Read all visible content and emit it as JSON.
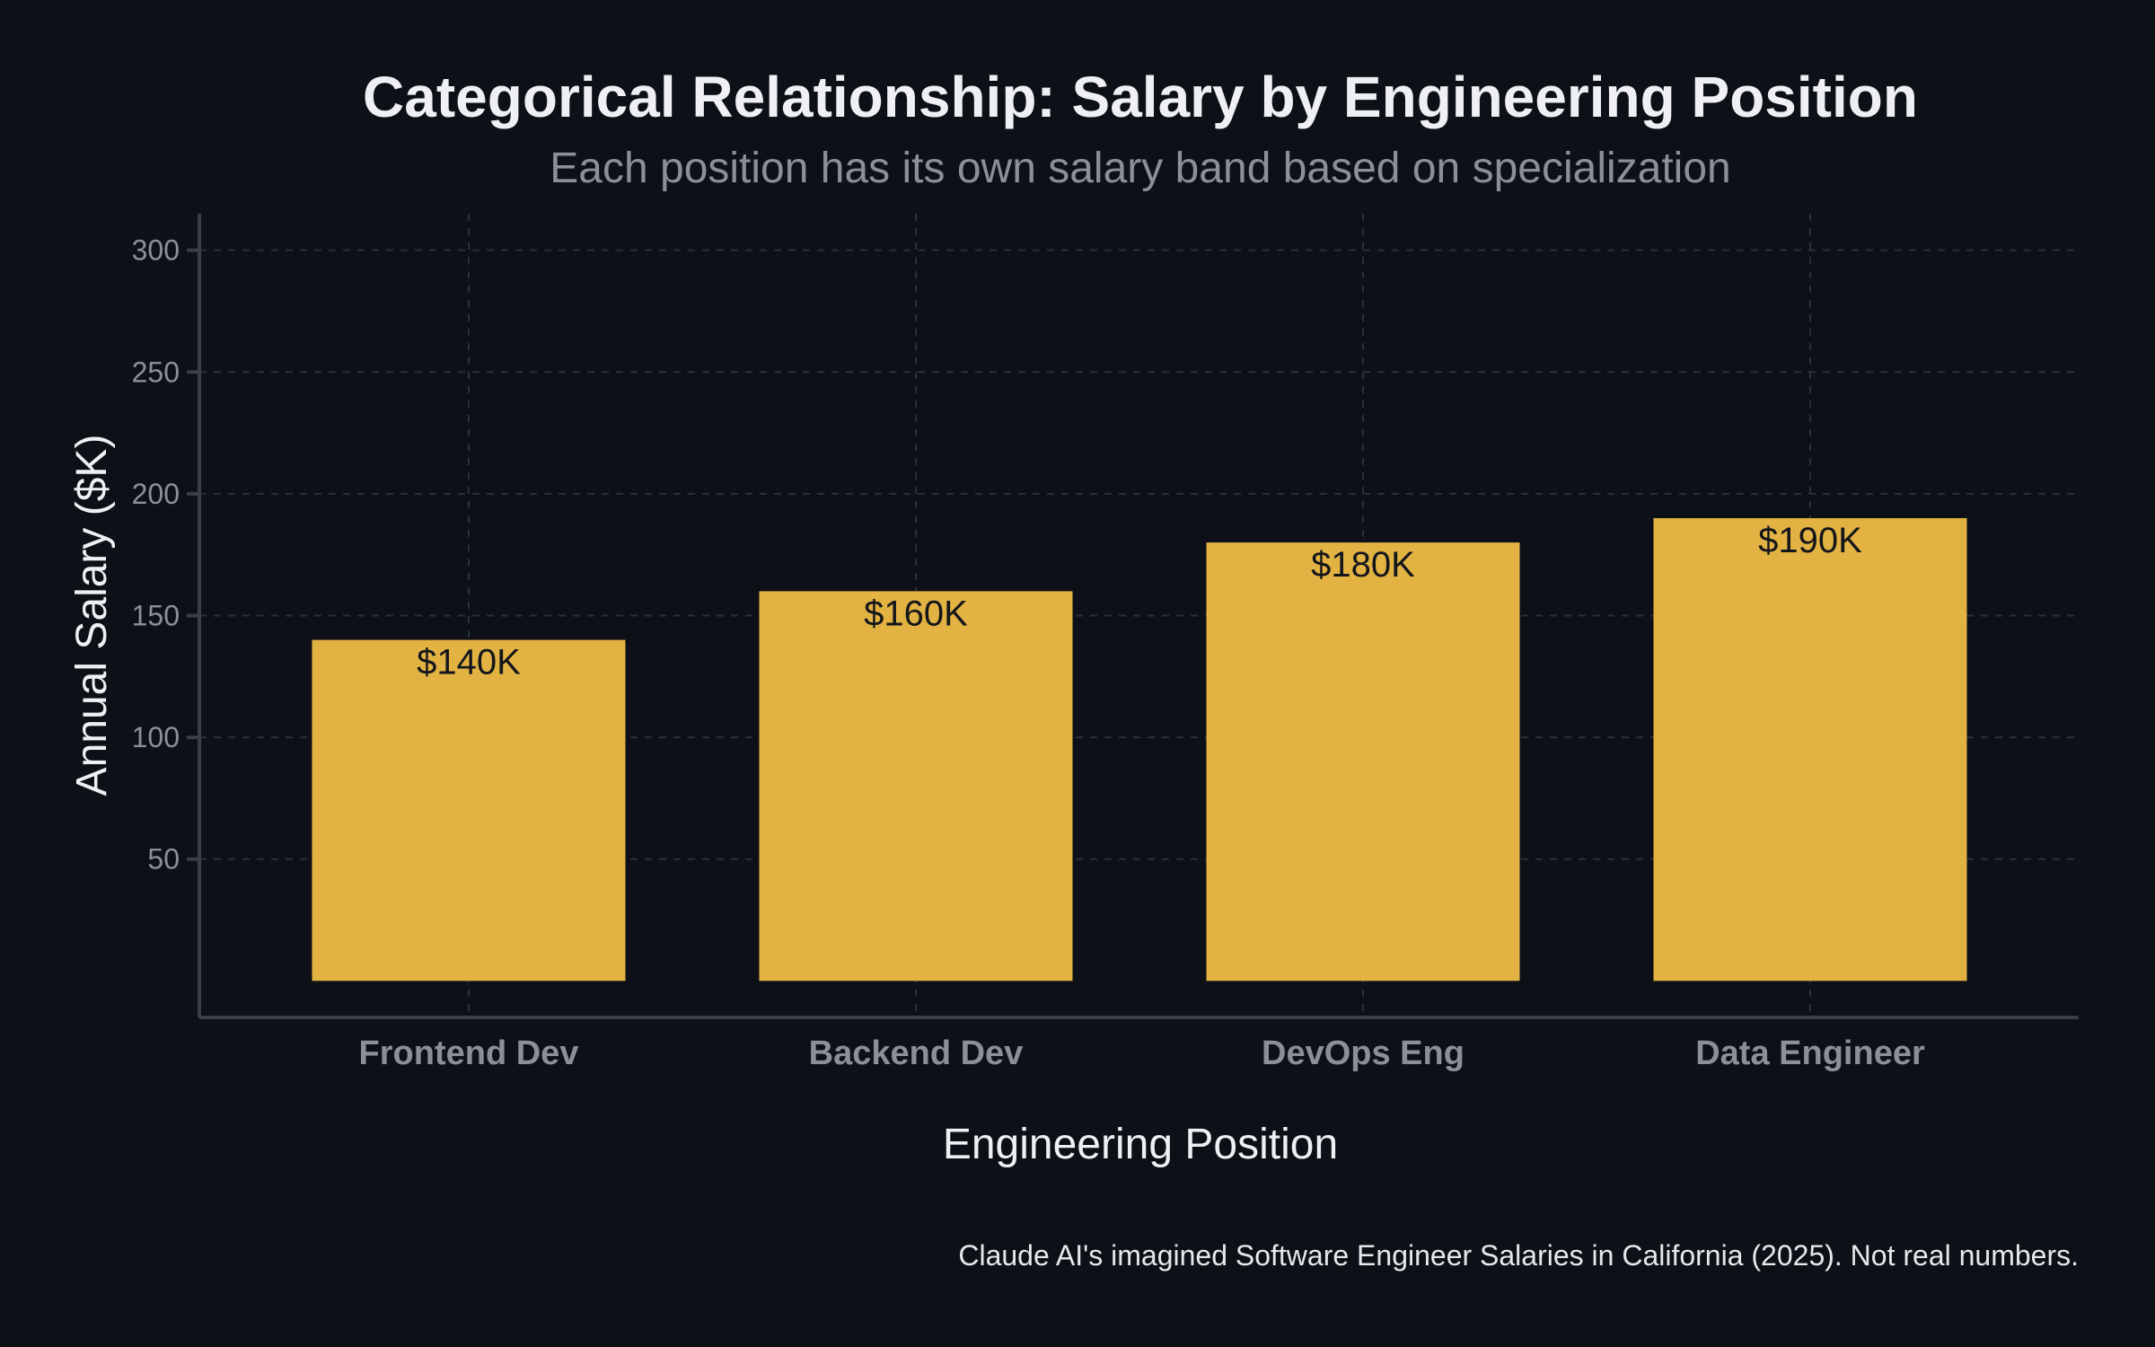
{
  "chart_data": {
    "type": "bar",
    "title": "Categorical Relationship: Salary by Engineering Position",
    "subtitle": "Each position has its own salary band based on specialization",
    "xlabel": "Engineering Position",
    "ylabel": "Annual Salary ($K)",
    "categories": [
      "Frontend Dev",
      "Backend Dev",
      "DevOps Eng",
      "Data Engineer"
    ],
    "values": [
      140,
      160,
      180,
      190
    ],
    "data_labels": [
      "$140K",
      "$160K",
      "$180K",
      "$190K"
    ],
    "yticks": [
      50,
      100,
      150,
      200,
      250,
      300
    ],
    "ylim": [
      -15,
      315
    ],
    "grid": true,
    "bar_color": "#e2b342",
    "footnote": "Claude AI's imagined Software Engineer Salaries in California (2025). Not real numbers."
  }
}
